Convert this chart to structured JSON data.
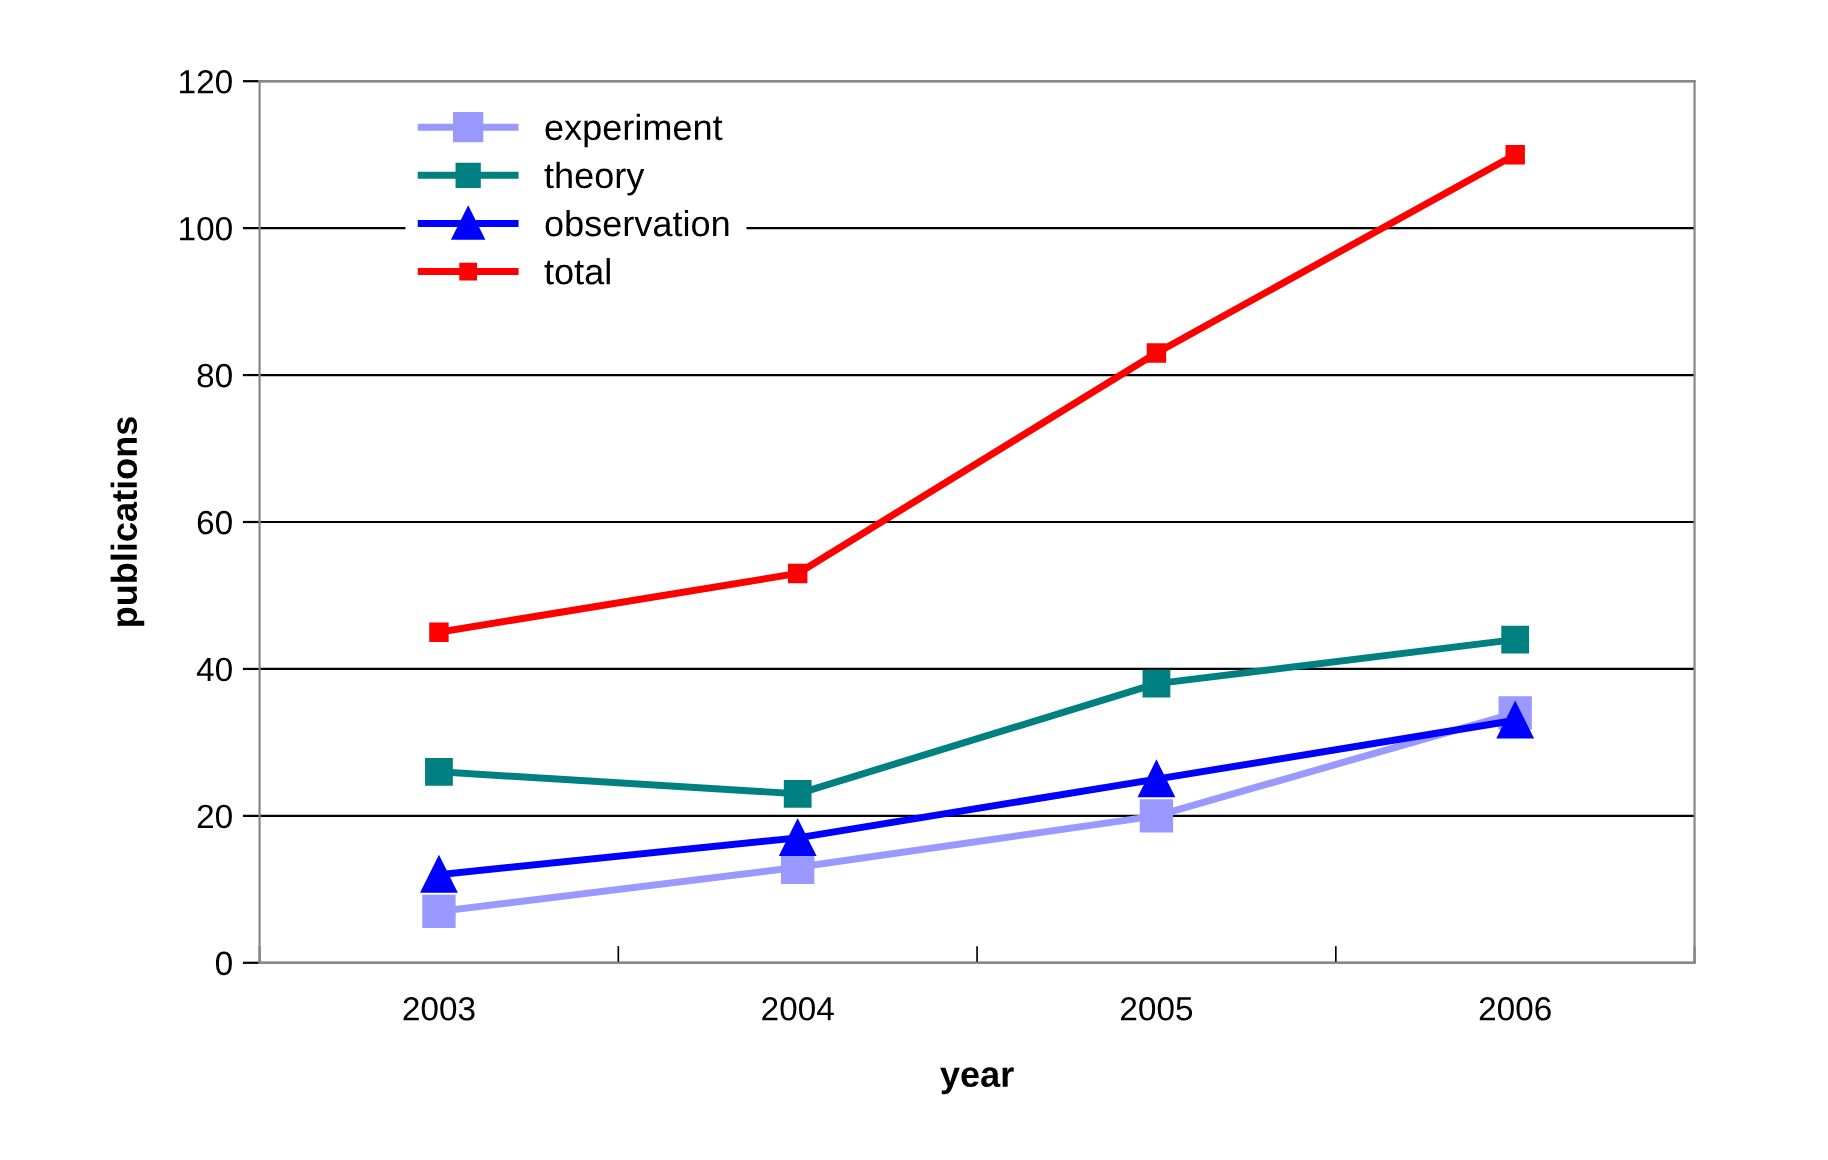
{
  "chart_data": {
    "type": "line",
    "xlabel": "year",
    "ylabel": "publications",
    "categories": [
      "2003",
      "2004",
      "2005",
      "2006"
    ],
    "series": [
      {
        "name": "experiment",
        "color": "#9999ff",
        "values": [
          7,
          13,
          20,
          34
        ],
        "marker": "square"
      },
      {
        "name": "theory",
        "color": "#008080",
        "values": [
          26,
          23,
          38,
          44
        ],
        "marker": "square"
      },
      {
        "name": "observation",
        "color": "#0000ff",
        "values": [
          12,
          17,
          25,
          33
        ],
        "marker": "triangle"
      },
      {
        "name": "total",
        "color": "#ff0000",
        "values": [
          45,
          53,
          83,
          110
        ],
        "marker": "square"
      }
    ],
    "ylim": [
      0,
      120
    ],
    "yticks": [
      0,
      20,
      40,
      60,
      80,
      100,
      120
    ],
    "grid": "y",
    "legend": "top left"
  }
}
